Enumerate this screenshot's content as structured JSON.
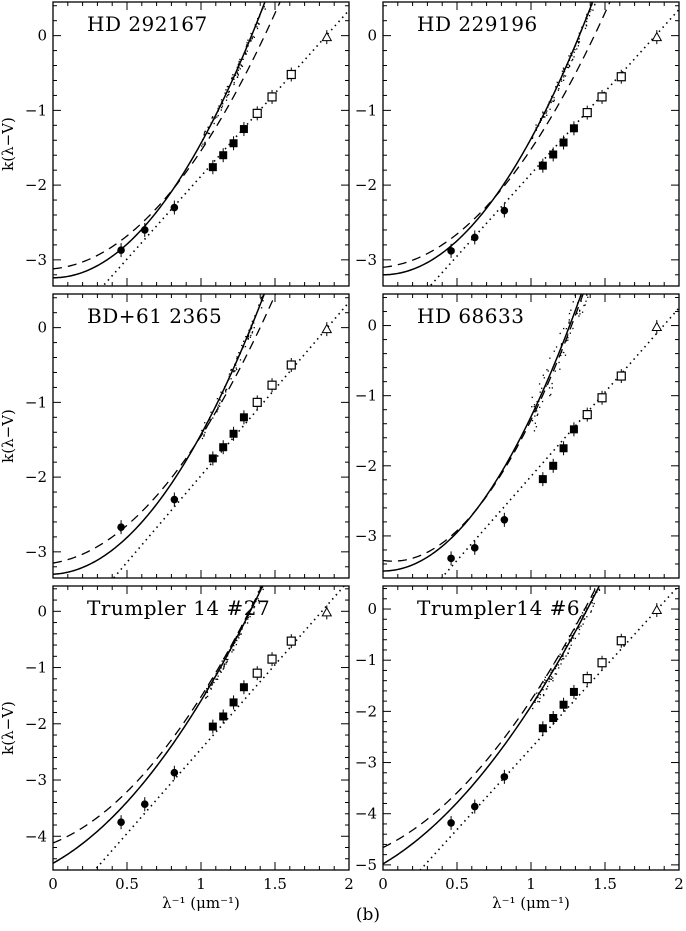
{
  "figure": {
    "caption": "(b)"
  },
  "chart_data": [
    {
      "type": "scatter",
      "title": "HD 292167",
      "xlabel": "",
      "ylabel": "k(λ−V)",
      "xlim": [
        0,
        2
      ],
      "ylim": [
        -3.35,
        0.45
      ],
      "yticks": [
        0,
        -1,
        -2,
        -3
      ],
      "xticks": [
        0,
        0.5,
        1,
        1.5,
        2
      ],
      "points": [
        {
          "x": 0.46,
          "y": -2.87,
          "marker": "circle"
        },
        {
          "x": 0.62,
          "y": -2.6,
          "marker": "circle"
        },
        {
          "x": 0.82,
          "y": -2.3,
          "marker": "circle"
        },
        {
          "x": 1.08,
          "y": -1.76,
          "marker": "square"
        },
        {
          "x": 1.15,
          "y": -1.6,
          "marker": "square"
        },
        {
          "x": 1.22,
          "y": -1.44,
          "marker": "square"
        },
        {
          "x": 1.29,
          "y": -1.25,
          "marker": "square"
        },
        {
          "x": 1.38,
          "y": -1.04,
          "marker": "open-square"
        },
        {
          "x": 1.48,
          "y": -0.82,
          "marker": "open-square"
        },
        {
          "x": 1.61,
          "y": -0.52,
          "marker": "open-square"
        },
        {
          "x": 1.85,
          "y": -0.02,
          "marker": "triangle"
        }
      ],
      "curves": {
        "solid": [
          -3.24,
          0,
          1.8
        ],
        "dashed": [
          -3.12,
          0.18,
          1.4
        ],
        "dotted": [
          -4.1,
          2.22,
          0
        ]
      }
    },
    {
      "type": "scatter",
      "title": "HD 229196",
      "xlabel": "",
      "ylabel": "",
      "xlim": [
        0,
        2
      ],
      "ylim": [
        -3.35,
        0.45
      ],
      "yticks": [
        0,
        -1,
        -2,
        -3
      ],
      "xticks": [
        0,
        0.5,
        1,
        1.5,
        2
      ],
      "points": [
        {
          "x": 0.46,
          "y": -2.88,
          "marker": "circle"
        },
        {
          "x": 0.62,
          "y": -2.7,
          "marker": "circle"
        },
        {
          "x": 0.82,
          "y": -2.34,
          "marker": "circle"
        },
        {
          "x": 1.08,
          "y": -1.74,
          "marker": "square"
        },
        {
          "x": 1.15,
          "y": -1.59,
          "marker": "square"
        },
        {
          "x": 1.22,
          "y": -1.43,
          "marker": "square"
        },
        {
          "x": 1.29,
          "y": -1.24,
          "marker": "square"
        },
        {
          "x": 1.38,
          "y": -1.03,
          "marker": "open-square"
        },
        {
          "x": 1.48,
          "y": -0.82,
          "marker": "open-square"
        },
        {
          "x": 1.61,
          "y": -0.55,
          "marker": "open-square"
        },
        {
          "x": 1.85,
          "y": -0.02,
          "marker": "triangle"
        }
      ],
      "curves": {
        "solid": [
          -3.2,
          0,
          1.82
        ],
        "dashed": [
          -3.1,
          0.2,
          1.38
        ],
        "dotted": [
          -4.05,
          2.2,
          0
        ]
      }
    },
    {
      "type": "scatter",
      "title": "BD+61 2365",
      "xlabel": "",
      "ylabel": "k(λ−V)",
      "xlim": [
        0,
        2
      ],
      "ylim": [
        -3.35,
        0.45
      ],
      "yticks": [
        0,
        -1,
        -2,
        -3
      ],
      "xticks": [
        0,
        0.5,
        1,
        1.5,
        2
      ],
      "points": [
        {
          "x": 0.46,
          "y": -2.67,
          "marker": "circle"
        },
        {
          "x": 0.82,
          "y": -2.3,
          "marker": "circle"
        },
        {
          "x": 1.08,
          "y": -1.75,
          "marker": "square"
        },
        {
          "x": 1.15,
          "y": -1.6,
          "marker": "square"
        },
        {
          "x": 1.22,
          "y": -1.42,
          "marker": "square"
        },
        {
          "x": 1.29,
          "y": -1.2,
          "marker": "square"
        },
        {
          "x": 1.38,
          "y": -1.0,
          "marker": "open-square"
        },
        {
          "x": 1.48,
          "y": -0.77,
          "marker": "open-square"
        },
        {
          "x": 1.61,
          "y": -0.5,
          "marker": "open-square"
        },
        {
          "x": 1.85,
          "y": -0.02,
          "marker": "triangle"
        }
      ],
      "curves": {
        "solid": [
          -3.3,
          0.1,
          1.77
        ],
        "dashed": [
          -3.15,
          0.32,
          1.38
        ],
        "dotted": [
          -4.3,
          2.32,
          0
        ]
      }
    },
    {
      "type": "scatter",
      "title": "HD 68633",
      "xlabel": "",
      "ylabel": "",
      "xlim": [
        0,
        2
      ],
      "ylim": [
        -3.6,
        0.45
      ],
      "yticks": [
        0,
        -1,
        -2,
        -3
      ],
      "xticks": [
        0,
        0.5,
        1,
        1.5,
        2
      ],
      "points": [
        {
          "x": 0.46,
          "y": -3.32,
          "marker": "circle"
        },
        {
          "x": 0.62,
          "y": -3.17,
          "marker": "circle"
        },
        {
          "x": 0.82,
          "y": -2.77,
          "marker": "circle"
        },
        {
          "x": 1.08,
          "y": -2.19,
          "marker": "square"
        },
        {
          "x": 1.15,
          "y": -2.0,
          "marker": "square"
        },
        {
          "x": 1.22,
          "y": -1.75,
          "marker": "square"
        },
        {
          "x": 1.29,
          "y": -1.48,
          "marker": "square"
        },
        {
          "x": 1.38,
          "y": -1.27,
          "marker": "open-square"
        },
        {
          "x": 1.48,
          "y": -1.03,
          "marker": "open-square"
        },
        {
          "x": 1.61,
          "y": -0.72,
          "marker": "open-square"
        },
        {
          "x": 1.85,
          "y": -0.02,
          "marker": "triangle"
        }
      ],
      "curves": {
        "solid": [
          -3.5,
          0,
          2.2
        ],
        "dashed": [
          -3.35,
          -0.3,
          2.3
        ],
        "dotted": [
          -4.55,
          2.4,
          0
        ]
      }
    },
    {
      "type": "scatter",
      "title": "Trumpler 14 #27",
      "xlabel": "λ⁻¹ (μm⁻¹)",
      "ylabel": "k(λ−V)",
      "xlim": [
        0,
        2
      ],
      "ylim": [
        -4.6,
        0.45
      ],
      "yticks": [
        0,
        -1,
        -2,
        -3,
        -4
      ],
      "xticks": [
        0,
        0.5,
        1,
        1.5,
        2
      ],
      "xticklabels": [
        "0",
        "0.5",
        "1",
        "1.5",
        "2"
      ],
      "points": [
        {
          "x": 0.46,
          "y": -3.75,
          "marker": "circle"
        },
        {
          "x": 0.62,
          "y": -3.43,
          "marker": "circle"
        },
        {
          "x": 0.82,
          "y": -2.87,
          "marker": "circle"
        },
        {
          "x": 1.08,
          "y": -2.05,
          "marker": "square"
        },
        {
          "x": 1.15,
          "y": -1.87,
          "marker": "square"
        },
        {
          "x": 1.22,
          "y": -1.62,
          "marker": "square"
        },
        {
          "x": 1.29,
          "y": -1.35,
          "marker": "square"
        },
        {
          "x": 1.38,
          "y": -1.1,
          "marker": "open-square"
        },
        {
          "x": 1.48,
          "y": -0.85,
          "marker": "open-square"
        },
        {
          "x": 1.61,
          "y": -0.53,
          "marker": "open-square"
        },
        {
          "x": 1.85,
          "y": -0.02,
          "marker": "triangle"
        }
      ],
      "curves": {
        "solid": [
          -4.48,
          1.47,
          1.42
        ],
        "dashed": [
          -4.12,
          1.05,
          1.55
        ],
        "dotted": [
          -5.45,
          3.0,
          0
        ]
      }
    },
    {
      "type": "scatter",
      "title": "Trumpler14  #6",
      "xlabel": "λ⁻¹ (μm⁻¹)",
      "ylabel": "",
      "xlim": [
        0,
        2
      ],
      "ylim": [
        -5.1,
        0.45
      ],
      "yticks": [
        0,
        -1,
        -2,
        -3,
        -4,
        -5
      ],
      "xticks": [
        0,
        0.5,
        1,
        1.5,
        2
      ],
      "xticklabels": [
        "0",
        "0.5",
        "1",
        "1.5",
        "2"
      ],
      "points": [
        {
          "x": 0.46,
          "y": -4.18,
          "marker": "circle"
        },
        {
          "x": 0.62,
          "y": -3.86,
          "marker": "circle"
        },
        {
          "x": 0.82,
          "y": -3.28,
          "marker": "circle"
        },
        {
          "x": 1.08,
          "y": -2.33,
          "marker": "square"
        },
        {
          "x": 1.15,
          "y": -2.13,
          "marker": "square"
        },
        {
          "x": 1.22,
          "y": -1.87,
          "marker": "square"
        },
        {
          "x": 1.29,
          "y": -1.62,
          "marker": "square"
        },
        {
          "x": 1.38,
          "y": -1.36,
          "marker": "open-square"
        },
        {
          "x": 1.48,
          "y": -1.05,
          "marker": "open-square"
        },
        {
          "x": 1.61,
          "y": -0.62,
          "marker": "open-square"
        },
        {
          "x": 1.85,
          "y": -0.02,
          "marker": "triangle"
        }
      ],
      "curves": {
        "solid": [
          -4.98,
          1.7,
          1.38
        ],
        "dashed": [
          -4.66,
          1.4,
          1.48
        ],
        "dotted": [
          -5.9,
          3.18,
          0
        ]
      }
    }
  ]
}
